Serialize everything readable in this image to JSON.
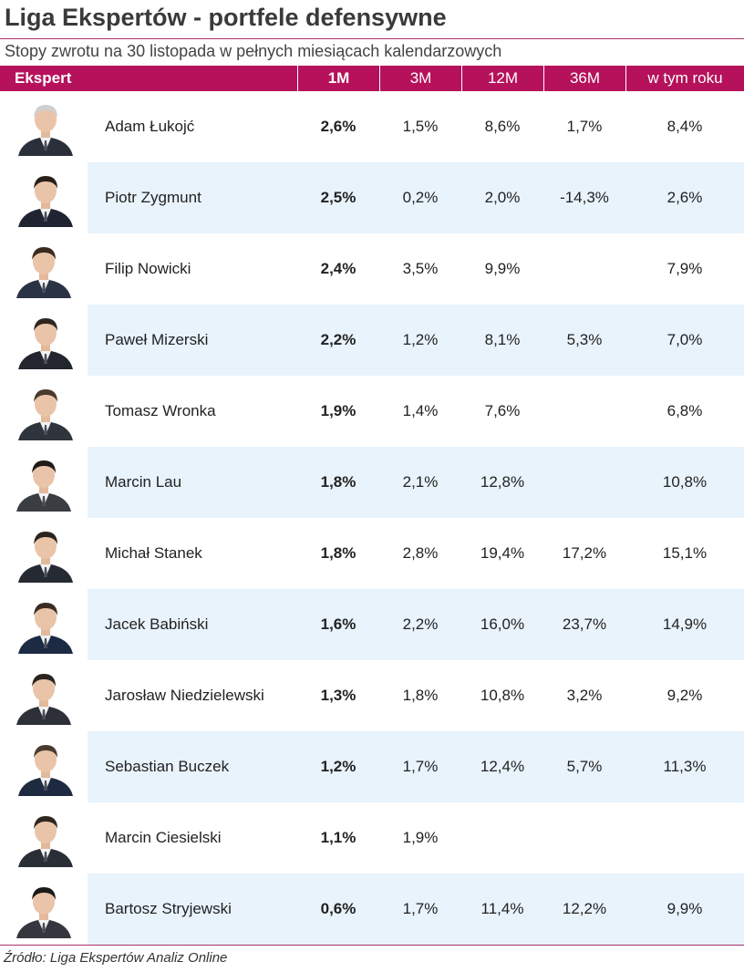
{
  "title": "Liga Ekspertów - portfele defensywne",
  "subtitle": "Stopy zwrotu na 30 listopada w pełnych miesiącach kalendarzowych",
  "source": "Źródło: Liga Ekspertów Analiz Online",
  "colors": {
    "header_bg": "#b5125b",
    "row_shade": "#e8f3fc",
    "rule": "#a8326b"
  },
  "chart_data": {
    "type": "table",
    "columns": [
      "Ekspert",
      "1M",
      "3M",
      "12M",
      "36M",
      "w tym roku"
    ],
    "rows": [
      {
        "name": "Adam Łukojć",
        "photo": "expert-photo",
        "m1": "2,6%",
        "m3": "1,5%",
        "m12": "8,6%",
        "m36": "1,7%",
        "ytd": "8,4%"
      },
      {
        "name": "Piotr Zygmunt",
        "photo": "expert-photo",
        "m1": "2,5%",
        "m3": "0,2%",
        "m12": "2,0%",
        "m36": "-14,3%",
        "ytd": "2,6%"
      },
      {
        "name": "Filip Nowicki",
        "photo": "expert-photo",
        "m1": "2,4%",
        "m3": "3,5%",
        "m12": "9,9%",
        "m36": "",
        "ytd": "7,9%"
      },
      {
        "name": "Paweł Mizerski",
        "photo": "expert-photo",
        "m1": "2,2%",
        "m3": "1,2%",
        "m12": "8,1%",
        "m36": "5,3%",
        "ytd": "7,0%"
      },
      {
        "name": "Tomasz Wronka",
        "photo": "expert-photo",
        "m1": "1,9%",
        "m3": "1,4%",
        "m12": "7,6%",
        "m36": "",
        "ytd": "6,8%"
      },
      {
        "name": "Marcin Lau",
        "photo": "expert-photo",
        "m1": "1,8%",
        "m3": "2,1%",
        "m12": "12,8%",
        "m36": "",
        "ytd": "10,8%"
      },
      {
        "name": "Michał Stanek",
        "photo": "expert-photo",
        "m1": "1,8%",
        "m3": "2,8%",
        "m12": "19,4%",
        "m36": "17,2%",
        "ytd": "15,1%"
      },
      {
        "name": "Jacek Babiński",
        "photo": "expert-photo",
        "m1": "1,6%",
        "m3": "2,2%",
        "m12": "16,0%",
        "m36": "23,7%",
        "ytd": "14,9%"
      },
      {
        "name": "Jarosław Niedzielewski",
        "photo": "expert-photo",
        "m1": "1,3%",
        "m3": "1,8%",
        "m12": "10,8%",
        "m36": "3,2%",
        "ytd": "9,2%"
      },
      {
        "name": "Sebastian Buczek",
        "photo": "expert-photo",
        "m1": "1,2%",
        "m3": "1,7%",
        "m12": "12,4%",
        "m36": "5,7%",
        "ytd": "11,3%"
      },
      {
        "name": "Marcin Ciesielski",
        "photo": "expert-photo",
        "m1": "1,1%",
        "m3": "1,9%",
        "m12": "",
        "m36": "",
        "ytd": ""
      },
      {
        "name": "Bartosz Stryjewski",
        "photo": "expert-photo",
        "m1": "0,6%",
        "m3": "1,7%",
        "m12": "11,4%",
        "m36": "12,2%",
        "ytd": "9,9%"
      }
    ]
  }
}
